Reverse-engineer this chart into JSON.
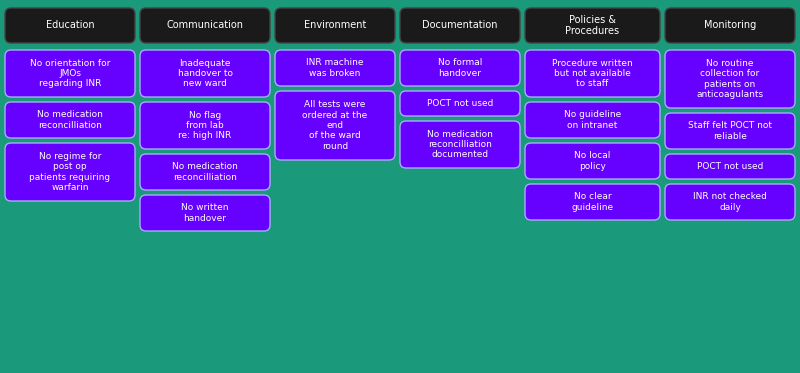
{
  "background_color": "#1a9a7a",
  "header_bg": "#1a1a1a",
  "card_bg": "#6600ff",
  "header_text_color": "#ffffff",
  "card_text_color": "#ffffff",
  "border_color": "#aaaaff",
  "fig_width": 8.0,
  "fig_height": 3.73,
  "dpi": 100,
  "columns": [
    {
      "header": "Education",
      "cards": [
        "No orientation for\nJMOs\nregarding INR",
        "No medication\nreconcilliation",
        "No regime for\npost op\npatients requiring\nwarfarin"
      ]
    },
    {
      "header": "Communication",
      "cards": [
        "Inadequate\nhandover to\nnew ward",
        "No flag\nfrom lab\nre: high INR",
        "No medication\nreconcilliation",
        "No written\nhandover"
      ]
    },
    {
      "header": "Environment",
      "cards": [
        "INR machine\nwas broken",
        "All tests were\nordered at the\nend\nof the ward\nround"
      ]
    },
    {
      "header": "Documentation",
      "cards": [
        "No formal\nhandover",
        "POCT not used",
        "No medication\nreconcilliation\ndocumented"
      ]
    },
    {
      "header": "Policies &\nProcedures",
      "cards": [
        "Procedure written\nbut not available\nto staff",
        "No guideline\non intranet",
        "No local\npolicy",
        "No clear\nguideline"
      ]
    },
    {
      "header": "Monitoring",
      "cards": [
        "No routine\ncollection for\npatients on\nanticoagulants",
        "Staff felt POCT not\nreliable",
        "POCT not used",
        "INR not checked\ndaily"
      ]
    }
  ]
}
